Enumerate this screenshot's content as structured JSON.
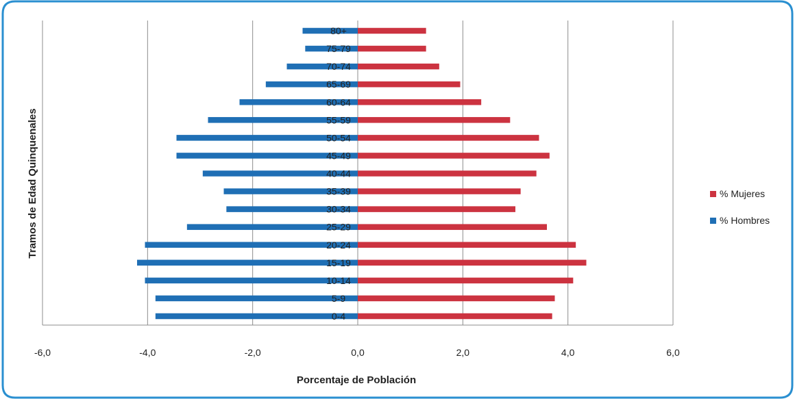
{
  "chart_data": {
    "type": "bar",
    "orientation": "horizontal",
    "title": "",
    "xlabel": "Porcentaje de Población",
    "ylabel": "Tramos de Edad Quinquenales",
    "xlim": [
      -6,
      6
    ],
    "xticks": [
      -6,
      -4,
      -2,
      0,
      2,
      4,
      6
    ],
    "xtick_labels": [
      "-6,0",
      "-4,0",
      "-2,0",
      "0,0",
      "2,0",
      "4,0",
      "6,0"
    ],
    "grid": "vertical",
    "legend_position": "right",
    "categories": [
      "0-4",
      "5-9",
      "10-14",
      "15-19",
      "20-24",
      "25-29",
      "30-34",
      "35-39",
      "40-44",
      "45-49",
      "50-54",
      "55-59",
      "60-64",
      "65-69",
      "70-74",
      "75-79",
      "80+"
    ],
    "series": [
      {
        "name": "% Mujeres",
        "color": "#cc3340",
        "values": [
          3.7,
          3.75,
          4.1,
          4.35,
          4.15,
          3.6,
          3.0,
          3.1,
          3.4,
          3.65,
          3.45,
          2.9,
          2.35,
          1.95,
          1.55,
          1.3,
          1.3
        ]
      },
      {
        "name": "% Hombres",
        "color": "#1f6fb5",
        "values": [
          -3.85,
          -3.85,
          -4.05,
          -4.2,
          -4.05,
          -3.25,
          -2.5,
          -2.55,
          -2.95,
          -3.45,
          -3.45,
          -2.85,
          -2.25,
          -1.75,
          -1.35,
          -1.0,
          -1.05
        ]
      }
    ]
  }
}
